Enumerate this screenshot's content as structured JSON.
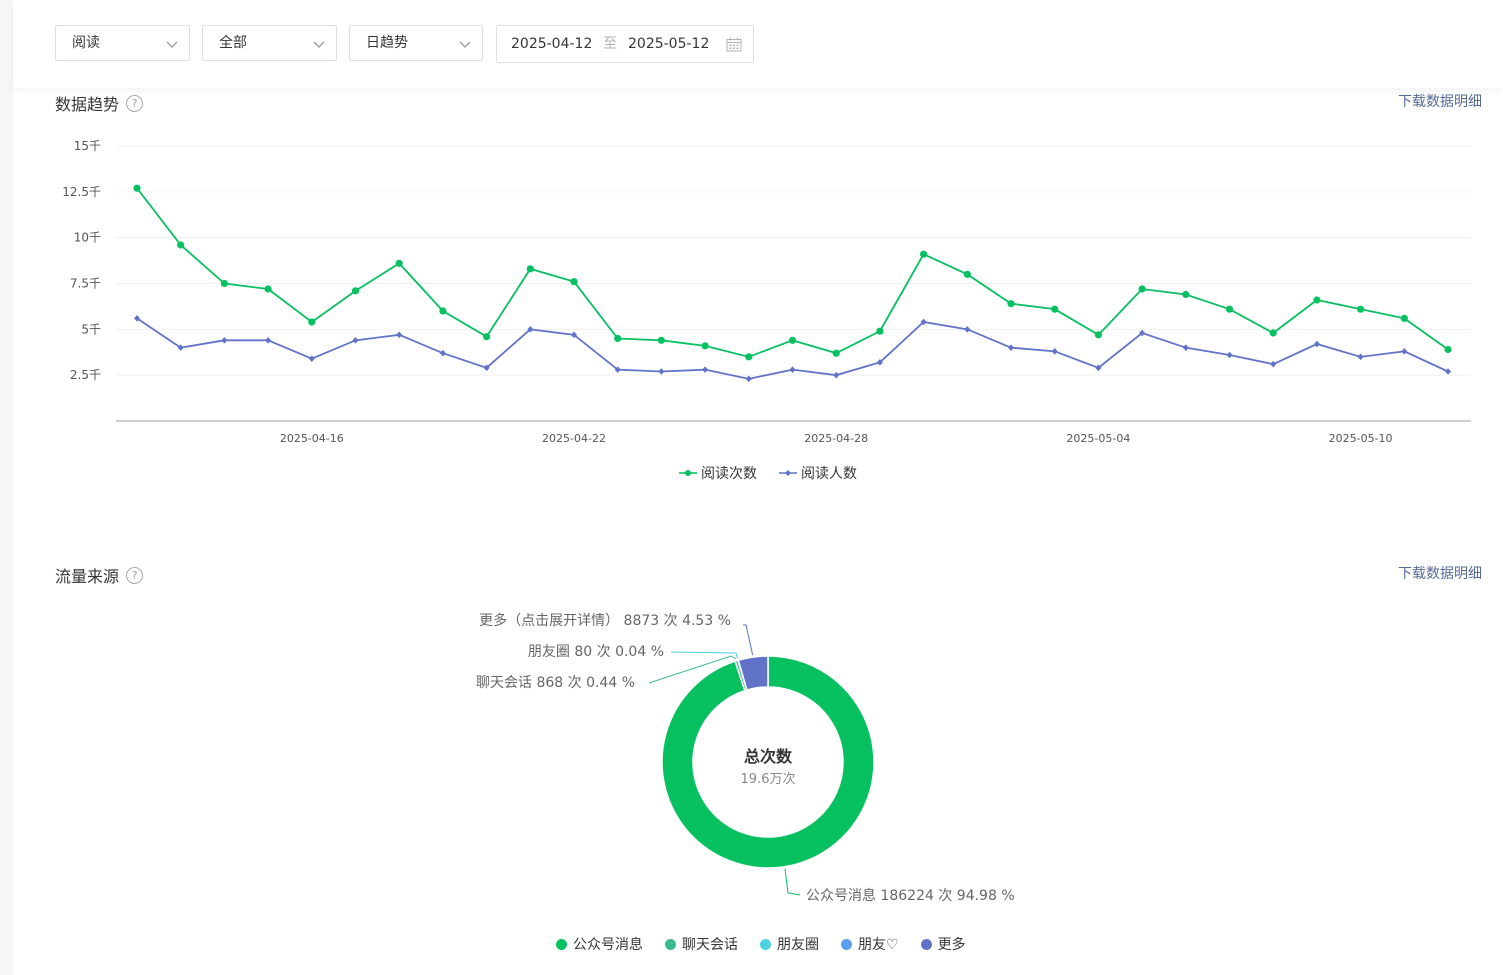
{
  "filters": {
    "metric": "阅读",
    "scope": "全部",
    "granularity": "日趋势",
    "date_start": "2025-04-12",
    "date_sep": "至",
    "date_end": "2025-05-12"
  },
  "trend": {
    "title": "数据趋势",
    "help": "?",
    "download": "下载数据明细"
  },
  "traffic": {
    "title": "流量来源",
    "help": "?",
    "download": "下载数据明细",
    "center_title": "总次数",
    "center_value": "19.6万次",
    "labels": [
      "更多（点击展开详情） 8873 次 4.53 %",
      "朋友圈 80 次 0.04 %",
      "聊天会话 868 次 0.44 %",
      "公众号消息 186224 次 94.98 %"
    ],
    "legend": [
      {
        "label": "公众号消息",
        "color": "#07c160"
      },
      {
        "label": "聊天会话",
        "color": "#3bba8c"
      },
      {
        "label": "朋友圈",
        "color": "#4dd0e1"
      },
      {
        "label": "朋友♡",
        "color": "#5a9ef0"
      },
      {
        "label": "更多",
        "color": "#6173c9"
      }
    ]
  },
  "chart_data": [
    {
      "type": "line",
      "x": [
        "2025-04-12",
        "2025-04-13",
        "2025-04-14",
        "2025-04-15",
        "2025-04-16",
        "2025-04-17",
        "2025-04-18",
        "2025-04-19",
        "2025-04-20",
        "2025-04-21",
        "2025-04-22",
        "2025-04-23",
        "2025-04-24",
        "2025-04-25",
        "2025-04-26",
        "2025-04-27",
        "2025-04-28",
        "2025-04-29",
        "2025-04-30",
        "2025-05-01",
        "2025-05-02",
        "2025-05-03",
        "2025-05-04",
        "2025-05-05",
        "2025-05-06",
        "2025-05-07",
        "2025-05-08",
        "2025-05-09",
        "2025-05-10",
        "2025-05-11",
        "2025-05-12"
      ],
      "x_ticks": [
        "2025-04-16",
        "2025-04-22",
        "2025-04-28",
        "2025-05-04",
        "2025-05-10"
      ],
      "y_ticks": [
        "15千",
        "12.5千",
        "10千",
        "7.5千",
        "5千",
        "2.5千"
      ],
      "y_tick_values": [
        15000,
        12500,
        10000,
        7500,
        5000,
        2500
      ],
      "ylim": [
        0,
        15000
      ],
      "grid": true,
      "legend_position": "bottom",
      "series": [
        {
          "name": "阅读次数",
          "color": "#07c160",
          "marker": "circle",
          "values": [
            12700,
            9600,
            7500,
            7200,
            5400,
            7100,
            8600,
            6000,
            4600,
            8300,
            7600,
            4500,
            4400,
            4100,
            3500,
            4400,
            3700,
            4900,
            9100,
            8000,
            6400,
            6100,
            4700,
            7200,
            6900,
            6100,
            4800,
            6600,
            6100,
            5600,
            3900
          ]
        },
        {
          "name": "阅读人数",
          "color": "#6173c9",
          "marker": "diamond",
          "values": [
            5600,
            4000,
            4400,
            4400,
            3400,
            4400,
            4700,
            3700,
            2900,
            5000,
            4700,
            2800,
            2700,
            2800,
            2300,
            2800,
            2500,
            3200,
            5400,
            5000,
            4000,
            3800,
            2900,
            4800,
            4000,
            3600,
            3100,
            4200,
            3500,
            3800,
            2700
          ]
        }
      ]
    },
    {
      "type": "pie",
      "categories": [
        "公众号消息",
        "聊天会话",
        "朋友圈",
        "朋友♡",
        "更多"
      ],
      "values": [
        186224,
        868,
        80,
        0,
        8873
      ],
      "colors": [
        "#07c160",
        "#3bba8c",
        "#4dd0e1",
        "#5a9ef0",
        "#6173c9"
      ],
      "donut": true,
      "legend_position": "bottom"
    }
  ]
}
